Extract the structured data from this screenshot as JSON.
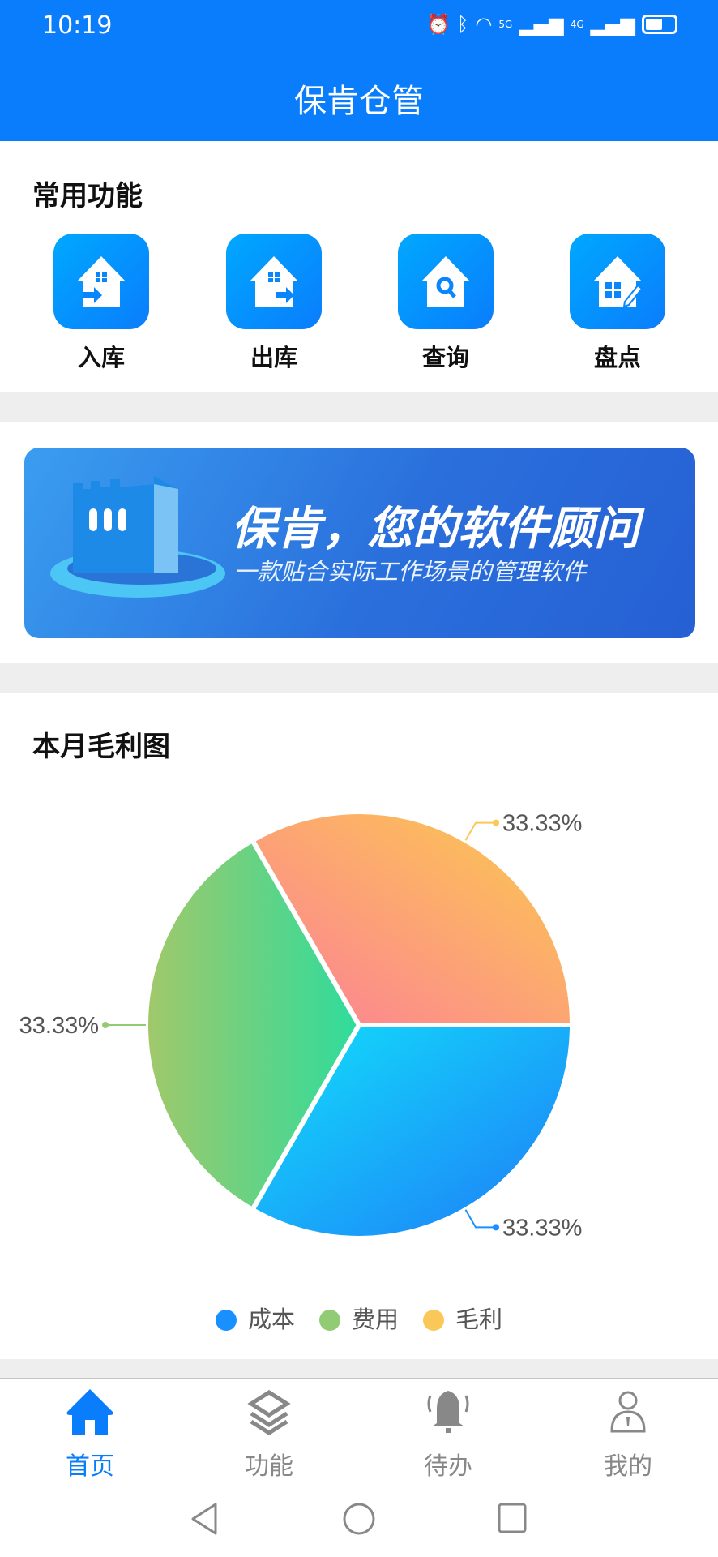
{
  "status": {
    "time": "10:19",
    "icons": [
      "alarm-icon",
      "bluetooth-icon",
      "wifi-icon",
      "signal-5g-icon",
      "signal-4g-icon",
      "battery-icon"
    ],
    "net1": "5G",
    "net2": "4G"
  },
  "header": {
    "title": "保肯仓管"
  },
  "common": {
    "title": "常用功能",
    "items": [
      {
        "label": "入库",
        "icon": "house-in-icon"
      },
      {
        "label": "出库",
        "icon": "house-out-icon"
      },
      {
        "label": "查询",
        "icon": "house-search-icon"
      },
      {
        "label": "盘点",
        "icon": "house-edit-icon"
      }
    ]
  },
  "banner": {
    "headline": "保肯，您的软件顾问",
    "subline": "一款贴合实际工作场景的管理软件"
  },
  "chart": {
    "title": "本月毛利图"
  },
  "chart_data": {
    "type": "pie",
    "title": "本月毛利图",
    "legend_position": "bottom",
    "series": [
      {
        "name": "成本",
        "value": 1,
        "label": "33.33%",
        "color": "#1890ff"
      },
      {
        "name": "费用",
        "value": 1,
        "label": "33.33%",
        "color": "#91cc75"
      },
      {
        "name": "毛利",
        "value": 1,
        "label": "33.33%",
        "color": "#fac858"
      }
    ]
  },
  "tabs": [
    {
      "label": "首页",
      "icon": "home-icon",
      "active": true
    },
    {
      "label": "功能",
      "icon": "layers-icon"
    },
    {
      "label": "待办",
      "icon": "bell-icon"
    },
    {
      "label": "我的",
      "icon": "user-icon"
    }
  ],
  "colors": {
    "primary": "#0a7dfc",
    "inactive": "#888888"
  }
}
